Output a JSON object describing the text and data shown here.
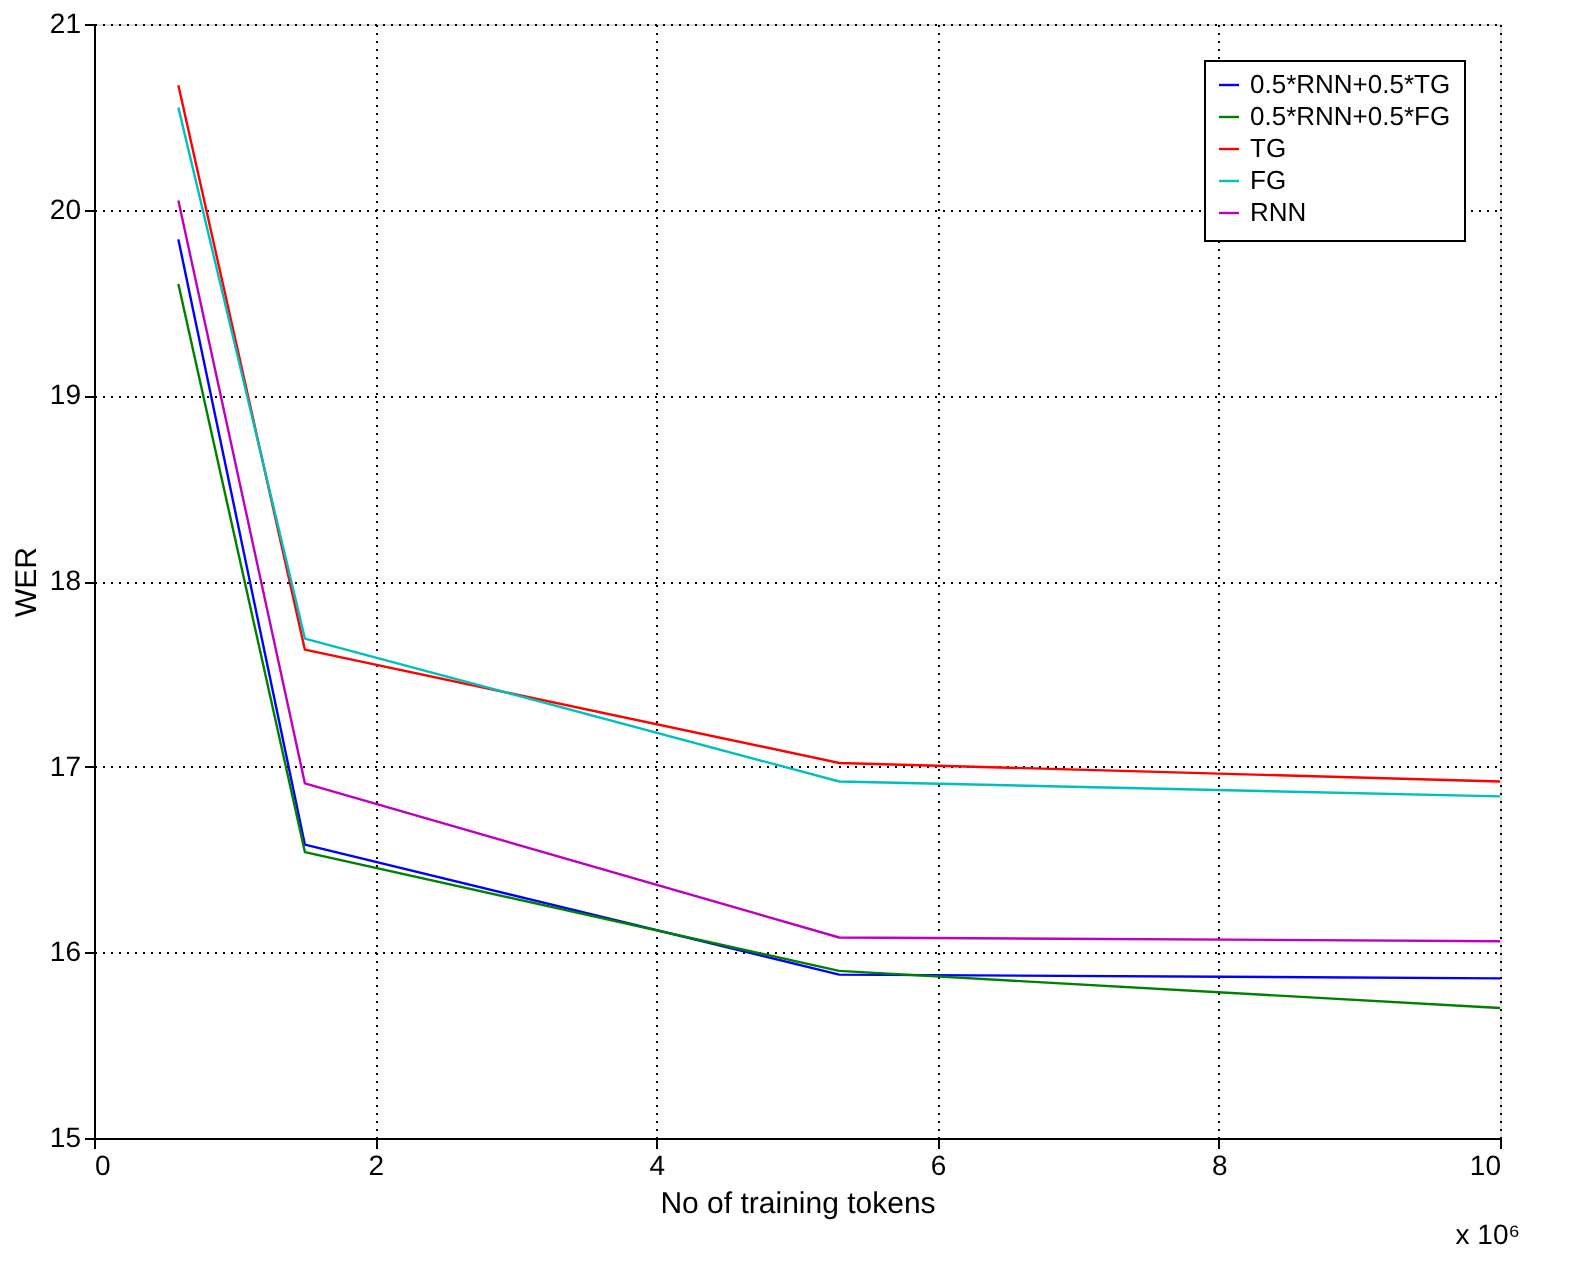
{
  "chart_data": {
    "type": "line",
    "xlabel": "No of training tokens",
    "ylabel": "WER",
    "x": [
      0.6,
      1.5,
      5.3,
      10
    ],
    "series": [
      {
        "name": "0.5*RNN+0.5*TG",
        "color": "#0000ff",
        "values": [
          19.84,
          16.58,
          15.88,
          15.86
        ]
      },
      {
        "name": "0.5*RNN+0.5*FG",
        "color": "#008000",
        "values": [
          19.6,
          16.54,
          15.9,
          15.7
        ]
      },
      {
        "name": "TG",
        "color": "#ff0000",
        "values": [
          20.67,
          17.63,
          17.02,
          16.92
        ]
      },
      {
        "name": "FG",
        "color": "#00bfbf",
        "values": [
          20.55,
          17.69,
          16.92,
          16.84
        ]
      },
      {
        "name": "RNN",
        "color": "#bf00bf",
        "values": [
          20.05,
          16.91,
          16.08,
          16.06
        ]
      }
    ],
    "xlim": [
      0,
      10
    ],
    "xticks": [
      0,
      2,
      4,
      6,
      8,
      10
    ],
    "ylim": [
      15,
      21
    ],
    "yticks": [
      15,
      16,
      17,
      18,
      19,
      20,
      21
    ],
    "grid": true,
    "legend": "top right",
    "line_style": "solid",
    "marker": "none",
    "annotations": [
      "x 10⁶"
    ]
  }
}
